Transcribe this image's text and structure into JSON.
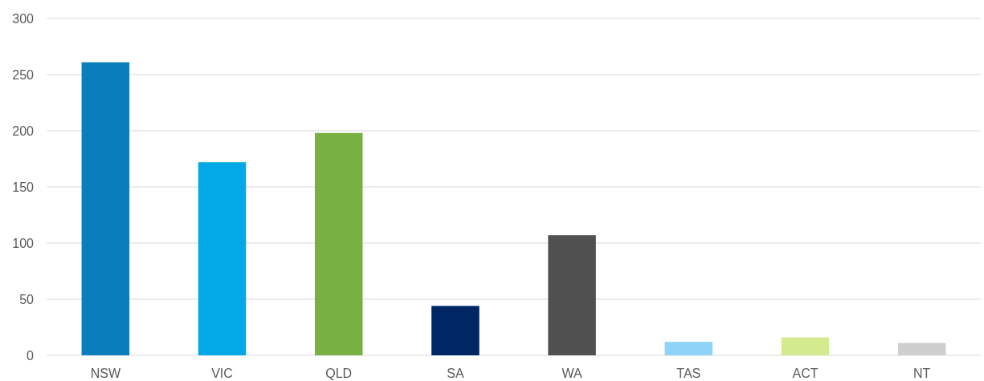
{
  "chart_data": {
    "type": "bar",
    "categories": [
      "NSW",
      "VIC",
      "QLD",
      "SA",
      "WA",
      "TAS",
      "ACT",
      "NT"
    ],
    "values": [
      261,
      172,
      198,
      44,
      107,
      12,
      16,
      11
    ],
    "colors": [
      "#0a7dbd",
      "#02a9e6",
      "#78b043",
      "#002664",
      "#505050",
      "#8fd4f8",
      "#d4ea8f",
      "#cfcfcf"
    ],
    "ylim": [
      0,
      300
    ],
    "yticks": [
      0,
      50,
      100,
      150,
      200,
      250,
      300
    ],
    "grid": "y"
  }
}
